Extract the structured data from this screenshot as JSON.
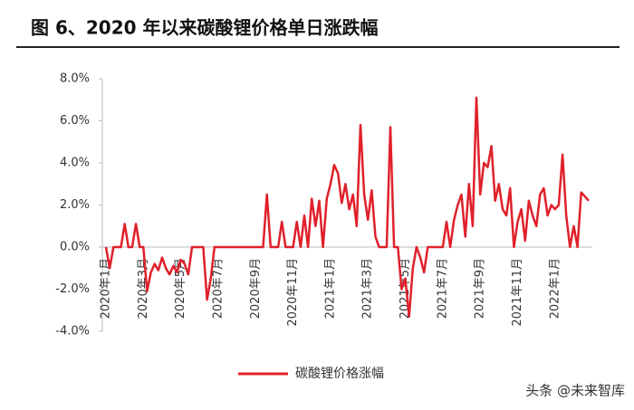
{
  "chart_data": {
    "type": "line",
    "title": "图 6、2020 年以来碳酸锂价格单日涨跌幅",
    "categories": [
      "2020年1月",
      null,
      null,
      null,
      null,
      null,
      null,
      null,
      null,
      null,
      "2020年3月",
      null,
      null,
      null,
      null,
      null,
      null,
      null,
      null,
      null,
      "2020年5月",
      null,
      null,
      null,
      null,
      null,
      null,
      null,
      null,
      null,
      "2020年7月",
      null,
      null,
      null,
      null,
      null,
      null,
      null,
      null,
      null,
      "2020年9月",
      null,
      null,
      null,
      null,
      null,
      null,
      null,
      null,
      null,
      "2020年11月",
      null,
      null,
      null,
      null,
      null,
      null,
      null,
      null,
      null,
      "2021年1月",
      null,
      null,
      null,
      null,
      null,
      null,
      null,
      null,
      null,
      "2021年3月",
      null,
      null,
      null,
      null,
      null,
      null,
      null,
      null,
      null,
      "2021年5月",
      null,
      null,
      null,
      null,
      null,
      null,
      null,
      null,
      null,
      "2021年7月",
      null,
      null,
      null,
      null,
      null,
      null,
      null,
      null,
      null,
      "2021年9月",
      null,
      null,
      null,
      null,
      null,
      null,
      null,
      null,
      null,
      "2021年11月",
      null,
      null,
      null,
      null,
      null,
      null,
      null,
      null,
      null,
      "2022年1月",
      null,
      null,
      null,
      null,
      null,
      null,
      null,
      null,
      null
    ],
    "series": [
      {
        "name": "碳酸锂价格涨幅",
        "color": "#e0202a",
        "values": [
          0,
          -1.0,
          0,
          0,
          0,
          1.1,
          0,
          0,
          1.1,
          0,
          0,
          -2.1,
          -1.2,
          -0.8,
          -1.1,
          -0.5,
          -1.0,
          -1.3,
          -0.9,
          -1.2,
          -0.6,
          -0.8,
          -1.3,
          0,
          0,
          0,
          0,
          -2.5,
          -1.5,
          0,
          0,
          0,
          0,
          0,
          0,
          0,
          0,
          0,
          0,
          0,
          0,
          0,
          0,
          2.5,
          0,
          0,
          0,
          1.2,
          0,
          0,
          0,
          1.2,
          0,
          1.5,
          0,
          2.3,
          1.0,
          2.2,
          0,
          2.3,
          3.0,
          3.9,
          3.5,
          2.1,
          3.0,
          1.8,
          2.5,
          1.0,
          5.8,
          2.5,
          1.3,
          2.7,
          0.5,
          0,
          0,
          0,
          5.7,
          0,
          0,
          -2.0,
          -1.5,
          -3.3,
          -1.0,
          0,
          -0.5,
          -1.2,
          0,
          0,
          0,
          0,
          0,
          1.2,
          0,
          1.3,
          2.0,
          2.5,
          0.5,
          3.0,
          1.0,
          7.1,
          2.5,
          4.0,
          3.8,
          4.8,
          2.2,
          3.0,
          1.8,
          1.5,
          2.8,
          0,
          1.2,
          1.8,
          0.3,
          2.2,
          1.5,
          1.0,
          2.5,
          2.8,
          1.5,
          2.0,
          1.8,
          2.0,
          4.4,
          1.5,
          0,
          1.0,
          0,
          2.6,
          2.4,
          2.2
        ]
      }
    ],
    "ylim": [
      -4,
      8
    ],
    "yticks": [
      {
        "value": -4,
        "label": "-4.0%"
      },
      {
        "value": -2,
        "label": "-2.0%"
      },
      {
        "value": 0,
        "label": "0.0%"
      },
      {
        "value": 2,
        "label": "2.0%"
      },
      {
        "value": 4,
        "label": "4.0%"
      },
      {
        "value": 6,
        "label": "6.0%"
      },
      {
        "value": 8,
        "label": "8.0%"
      }
    ],
    "legend_position": "bottom",
    "watermark": "头条 @未来智库"
  }
}
